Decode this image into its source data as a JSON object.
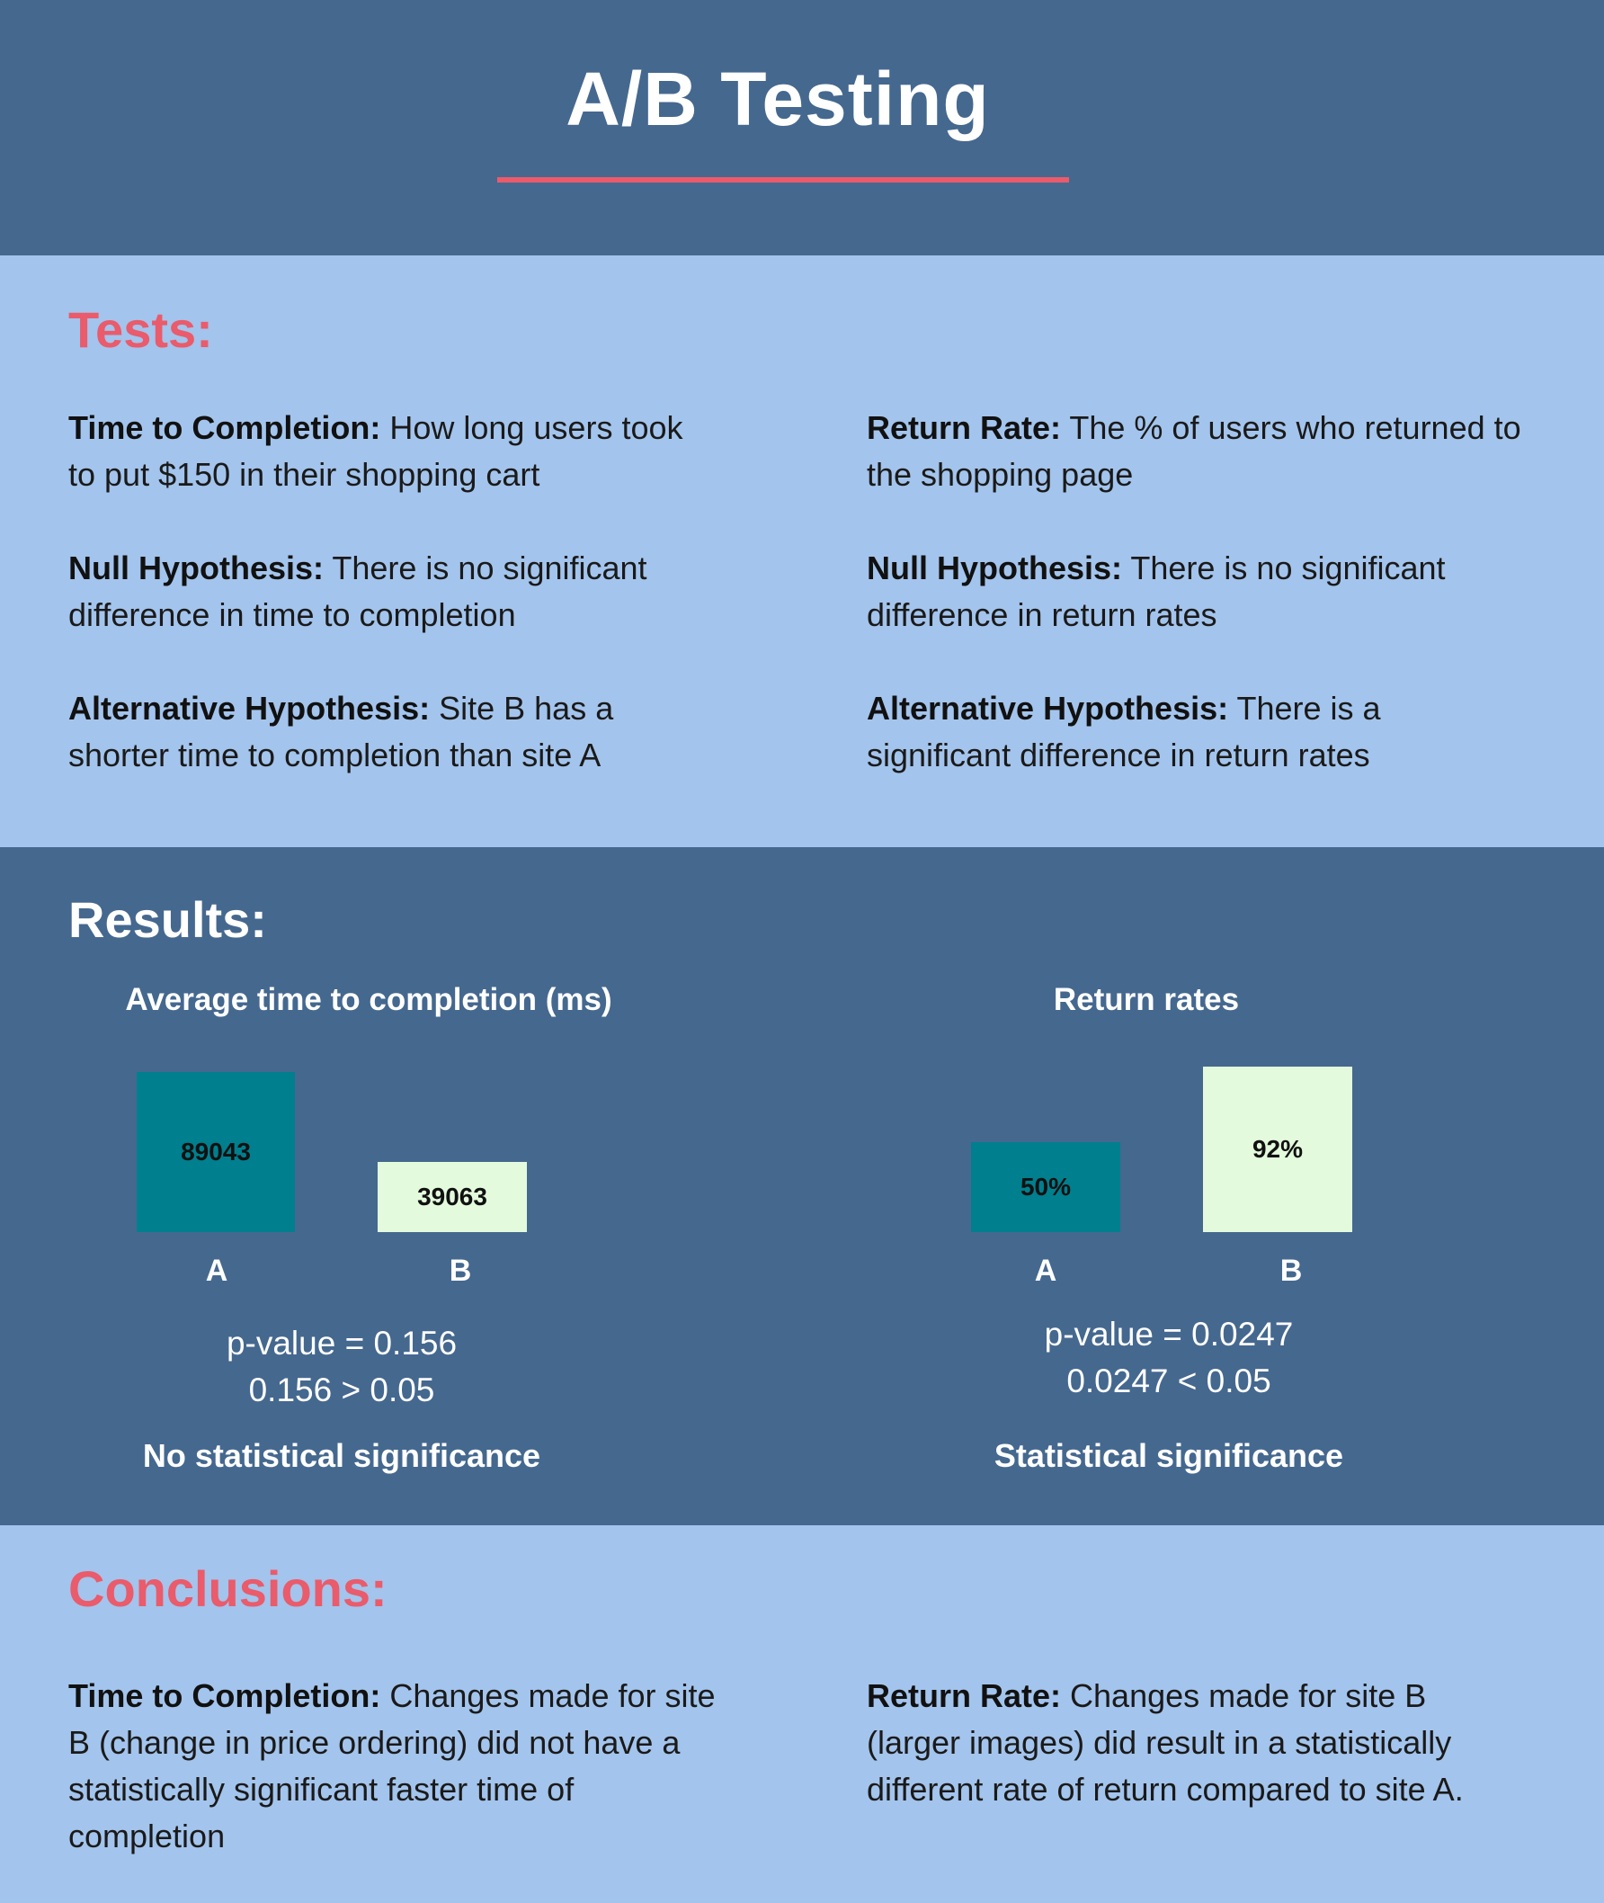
{
  "title": "A/B Testing",
  "tests": {
    "heading": "Tests:",
    "left": [
      {
        "label": "Time to Completion:",
        "text": " How long users took to put $150 in their shopping cart"
      },
      {
        "label": "Null Hypothesis:",
        "text": " There is no significant difference in time to completion"
      },
      {
        "label": "Alternative Hypothesis:",
        "text": " Site B has a shorter time to completion than site A"
      }
    ],
    "right": [
      {
        "label": "Return Rate:",
        "text": " The % of users who returned to the shopping page"
      },
      {
        "label": "Null Hypothesis:",
        "text": " There is no significant difference in return rates"
      },
      {
        "label": "Alternative Hypothesis:",
        "text": " There is a significant difference in return rates"
      }
    ]
  },
  "results": {
    "heading": "Results:",
    "left": {
      "p_line1": "p-value = 0.156",
      "p_line2": "0.156 > 0.05",
      "verdict": "No statistical significance"
    },
    "right": {
      "p_line1": "p-value = 0.0247",
      "p_line2": "0.0247 < 0.05",
      "verdict": "Statistical significance"
    }
  },
  "chart_data": [
    {
      "type": "bar",
      "title": "Average time to completion (ms)",
      "categories": [
        "A",
        "B"
      ],
      "values": [
        89043,
        39063
      ],
      "value_labels": [
        "89043",
        "39063"
      ],
      "colors": [
        "#007f8e",
        "#e3fbdc"
      ]
    },
    {
      "type": "bar",
      "title": "Return rates",
      "categories": [
        "A",
        "B"
      ],
      "values": [
        50,
        92
      ],
      "value_labels": [
        "50%",
        "92%"
      ],
      "colors": [
        "#007f8e",
        "#e3fbdc"
      ]
    }
  ],
  "conclusions": {
    "heading": "Conclusions:",
    "left": {
      "label": "Time to Completion:",
      "text": " Changes made for site B (change in price ordering) did not have a statistically significant faster time of completion"
    },
    "right": {
      "label": "Return Rate:",
      "text": " Changes made for site B (larger images) did result in a statistically different rate of return compared to site A."
    }
  },
  "colors": {
    "dark_band": "#45688f",
    "light_band": "#a3c4ec",
    "accent_red": "#ea5b6b",
    "bar_a": "#007f8e",
    "bar_b": "#e3fbdc"
  }
}
